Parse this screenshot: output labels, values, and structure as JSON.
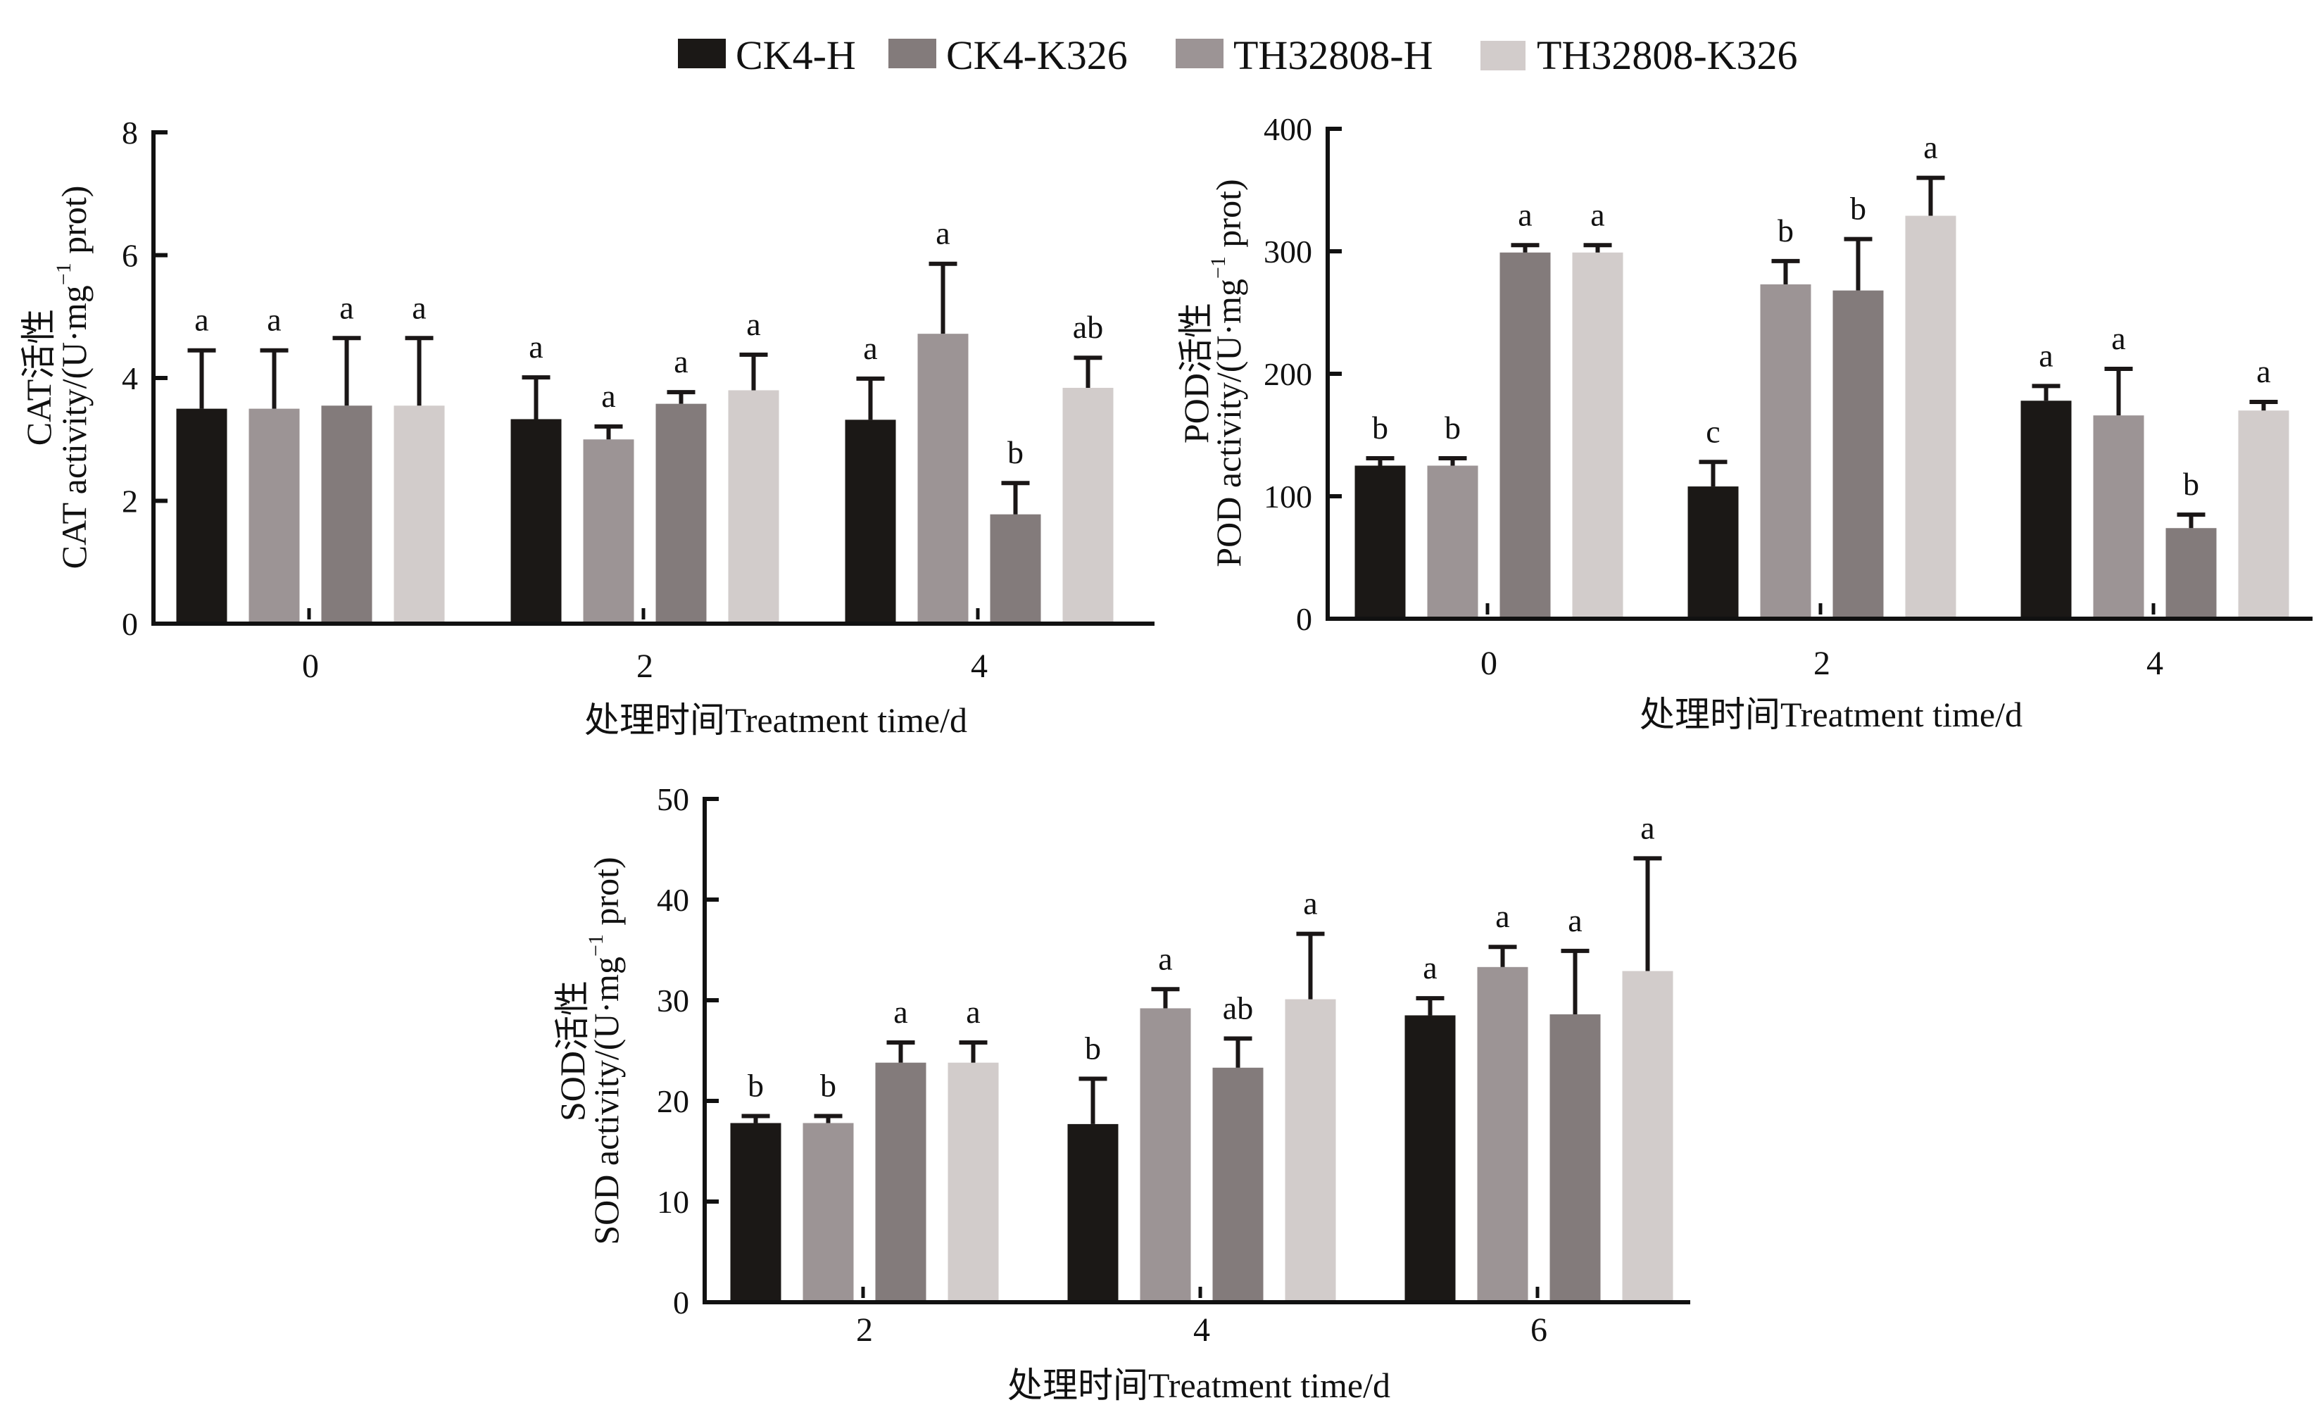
{
  "legend": {
    "position": "top-center",
    "entries": [
      {
        "label": "CK4-H",
        "color": "#1b1816"
      },
      {
        "label": "CK4-K326",
        "color": "#837b7b"
      },
      {
        "label": "TH32808-H",
        "color": "#9c9495"
      },
      {
        "label": "TH32808-K326",
        "color": "#d2cccb"
      }
    ]
  },
  "bar_draw_order": [
    0,
    2,
    1,
    3
  ],
  "chart_data": [
    {
      "type": "bar",
      "id": "cat",
      "title": "",
      "ylabel_line1": "CAT活性",
      "ylabel_line2": "CAT activity/(U·mg",
      "ylabel_sup": "−1",
      "ylabel_tail": " prot)",
      "xlabel": "处理时间Treatment time/d",
      "categories": [
        "0",
        "2",
        "4"
      ],
      "ylim": [
        0,
        8
      ],
      "yticks": [
        "0",
        "2",
        "4",
        "6",
        "8"
      ],
      "grid": false,
      "series": [
        {
          "name": "CK4-H",
          "values": [
            3.5,
            3.33,
            3.32
          ],
          "errors": [
            0.95,
            0.68,
            0.67
          ],
          "letters": [
            "a",
            "a",
            "a"
          ]
        },
        {
          "name": "CK4-K326",
          "values": [
            3.55,
            3.58,
            1.78
          ],
          "errors": [
            1.1,
            0.19,
            0.51
          ],
          "letters": [
            "a",
            "a",
            "b"
          ]
        },
        {
          "name": "TH32808-H",
          "values": [
            3.5,
            3.0,
            4.72
          ],
          "errors": [
            0.95,
            0.21,
            1.14
          ],
          "letters": [
            "a",
            "a",
            "a"
          ]
        },
        {
          "name": "TH32808-K326",
          "values": [
            3.55,
            3.8,
            3.84
          ],
          "errors": [
            1.1,
            0.58,
            0.49
          ],
          "letters": [
            "a",
            "a",
            "ab"
          ]
        }
      ]
    },
    {
      "type": "bar",
      "id": "pod",
      "title": "",
      "ylabel_line1": "POD活性",
      "ylabel_line2": "POD activity/(U·mg",
      "ylabel_sup": "−1",
      "ylabel_tail": " prot)",
      "xlabel": "处理时间Treatment time/d",
      "categories": [
        "0",
        "2",
        "4"
      ],
      "ylim": [
        0,
        400
      ],
      "yticks": [
        "0",
        "100",
        "200",
        "300",
        "400"
      ],
      "grid": false,
      "series": [
        {
          "name": "CK4-H",
          "values": [
            125,
            108,
            178
          ],
          "errors": [
            6,
            20,
            12
          ],
          "letters": [
            "b",
            "c",
            "a"
          ]
        },
        {
          "name": "CK4-K326",
          "values": [
            299,
            268,
            74
          ],
          "errors": [
            6,
            42,
            11
          ],
          "letters": [
            "a",
            "b",
            "b"
          ]
        },
        {
          "name": "TH32808-H",
          "values": [
            125,
            273,
            166
          ],
          "errors": [
            6,
            19,
            38
          ],
          "letters": [
            "b",
            "b",
            "a"
          ]
        },
        {
          "name": "TH32808-K326",
          "values": [
            299,
            329,
            170
          ],
          "errors": [
            6,
            31,
            7
          ],
          "letters": [
            "a",
            "a",
            "a"
          ]
        }
      ]
    },
    {
      "type": "bar",
      "id": "sod",
      "title": "",
      "ylabel_line1": "SOD活性",
      "ylabel_line2": "SOD activity/(U·mg",
      "ylabel_sup": "−1",
      "ylabel_tail": " prot)",
      "xlabel": "处理时间Treatment time/d",
      "categories": [
        "2",
        "4",
        "6"
      ],
      "ylim": [
        0,
        50
      ],
      "yticks": [
        "0",
        "10",
        "20",
        "30",
        "40",
        "50"
      ],
      "grid": false,
      "series": [
        {
          "name": "CK4-H",
          "values": [
            17.8,
            17.7,
            28.5
          ],
          "errors": [
            0.7,
            4.5,
            1.7
          ],
          "letters": [
            "b",
            "b",
            "a"
          ]
        },
        {
          "name": "CK4-K326",
          "values": [
            23.8,
            23.3,
            28.6
          ],
          "errors": [
            2.0,
            2.9,
            6.3
          ],
          "letters": [
            "a",
            "ab",
            "a"
          ]
        },
        {
          "name": "TH32808-H",
          "values": [
            17.8,
            29.2,
            33.3
          ],
          "errors": [
            0.7,
            1.9,
            2.0
          ],
          "letters": [
            "b",
            "a",
            "a"
          ]
        },
        {
          "name": "TH32808-K326",
          "values": [
            23.8,
            30.1,
            32.9
          ],
          "errors": [
            2.0,
            6.5,
            11.2
          ],
          "letters": [
            "a",
            "a",
            "a"
          ]
        }
      ]
    }
  ]
}
